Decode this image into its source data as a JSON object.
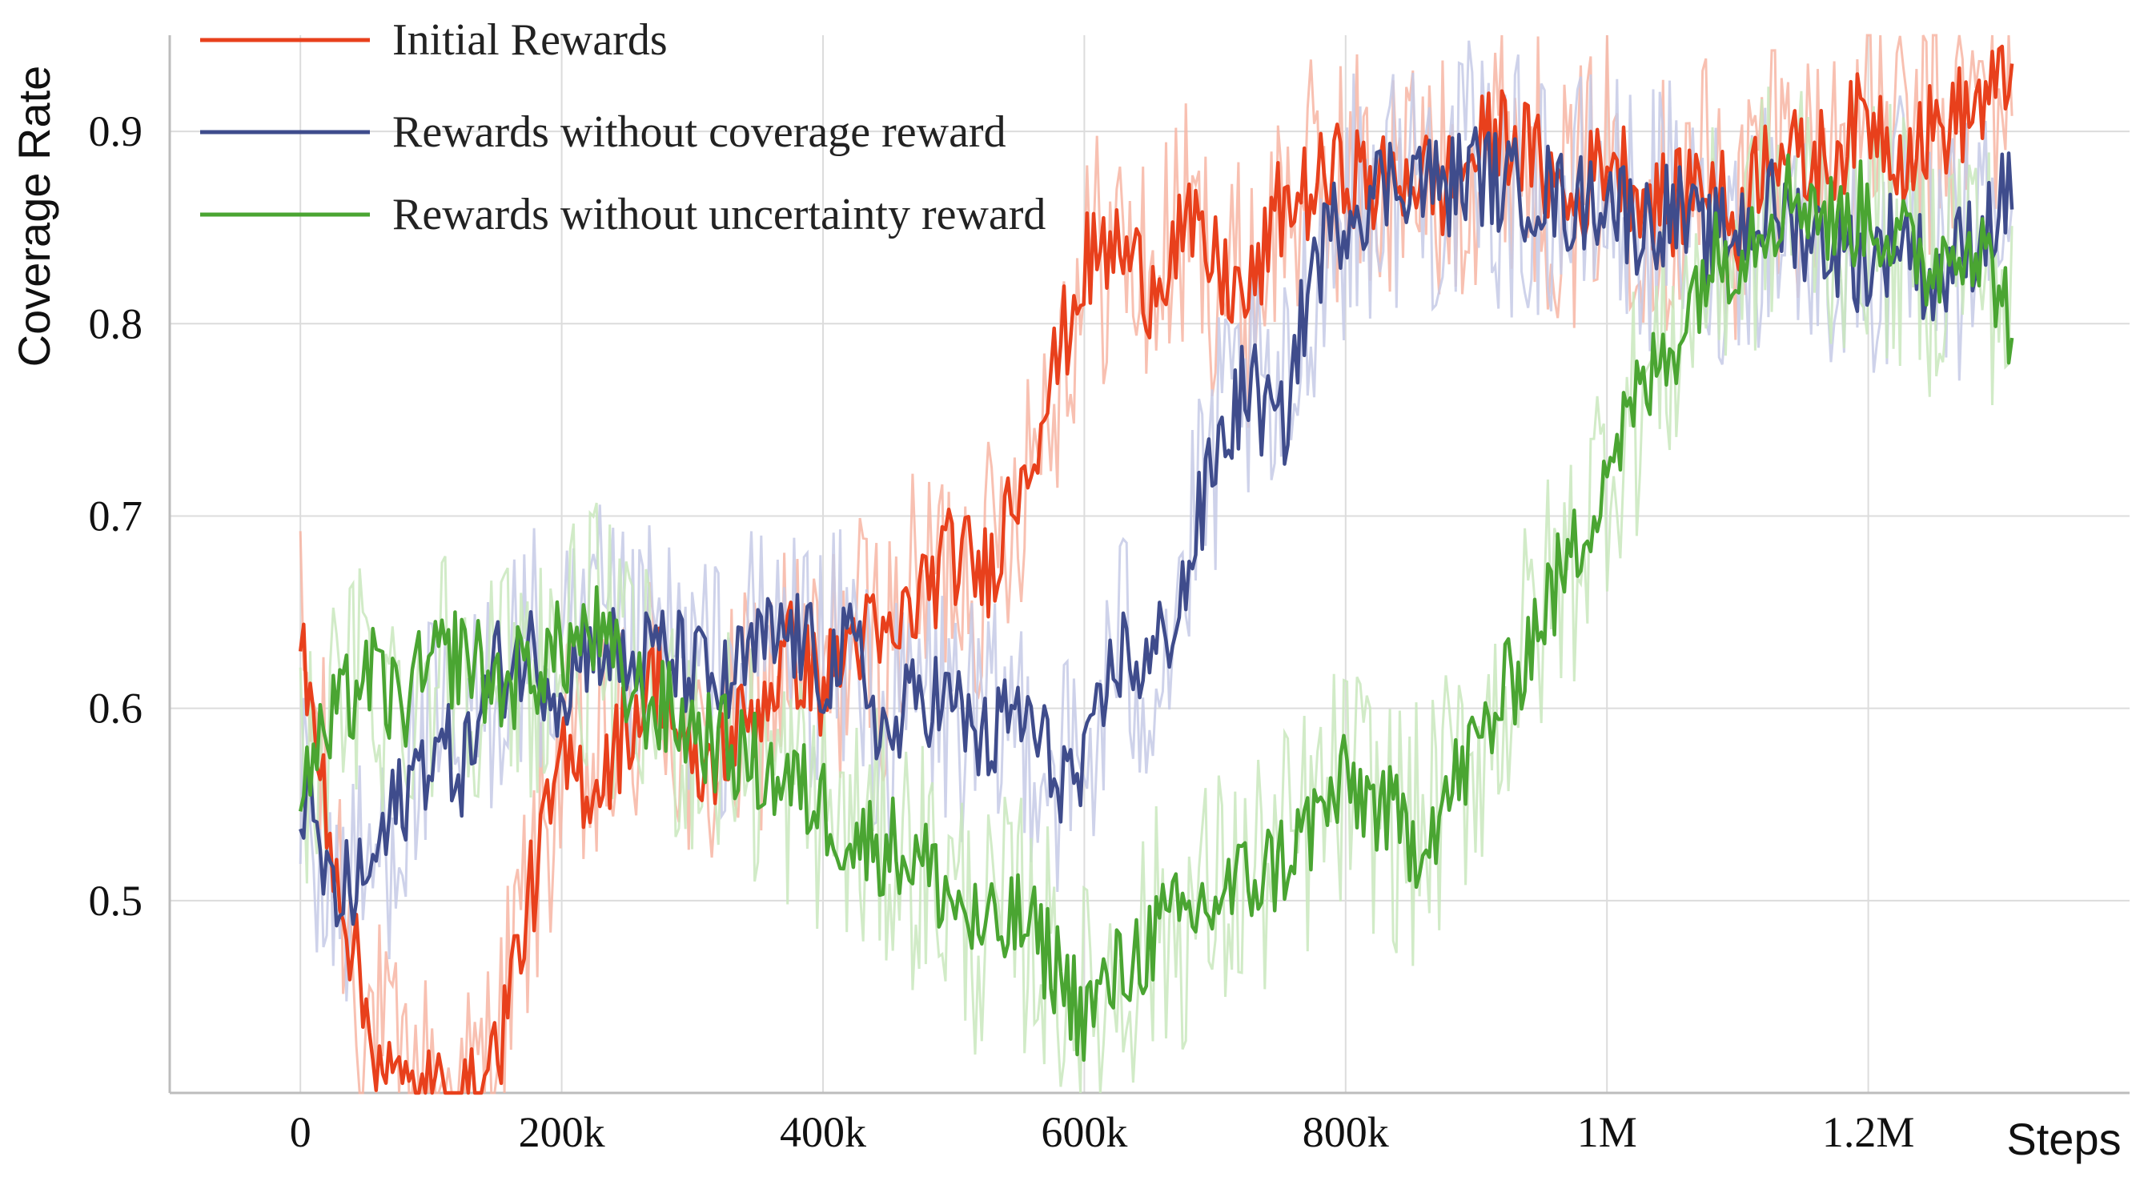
{
  "chart_data": {
    "type": "line",
    "title": "",
    "xlabel": "Steps",
    "ylabel": "Coverage Rate",
    "xlim": [
      -100000,
      1400000
    ],
    "ylim": [
      0.4,
      0.95
    ],
    "x_ticks": [
      0,
      200000,
      400000,
      600000,
      800000,
      1000000,
      1200000
    ],
    "x_tick_labels": [
      "0",
      "200k",
      "400k",
      "600k",
      "800k",
      "1M",
      "1.2M"
    ],
    "y_ticks": [
      0.5,
      0.6,
      0.7,
      0.8,
      0.9
    ],
    "y_tick_labels": [
      "0.5",
      "0.6",
      "0.7",
      "0.8",
      "0.9"
    ],
    "grid": true,
    "legend_position": "top-left",
    "series": [
      {
        "name": "Initial Rewards",
        "color": "#e8401c",
        "faint_color": "#f7b5a3",
        "x": [
          0,
          25000,
          50000,
          75000,
          100000,
          125000,
          150000,
          175000,
          200000,
          225000,
          250000,
          275000,
          300000,
          325000,
          350000,
          375000,
          400000,
          425000,
          450000,
          475000,
          500000,
          525000,
          550000,
          575000,
          600000,
          625000,
          650000,
          675000,
          700000,
          725000,
          750000,
          775000,
          800000,
          825000,
          850000,
          875000,
          900000,
          925000,
          950000,
          975000,
          1000000,
          1025000,
          1050000,
          1075000,
          1100000,
          1125000,
          1150000,
          1175000,
          1200000,
          1225000,
          1250000,
          1275000,
          1300000,
          1310000
        ],
        "values": [
          0.63,
          0.53,
          0.44,
          0.4,
          0.4,
          0.39,
          0.42,
          0.5,
          0.57,
          0.56,
          0.59,
          0.62,
          0.56,
          0.58,
          0.6,
          0.63,
          0.61,
          0.64,
          0.63,
          0.66,
          0.68,
          0.67,
          0.72,
          0.77,
          0.83,
          0.84,
          0.82,
          0.85,
          0.83,
          0.81,
          0.86,
          0.87,
          0.88,
          0.87,
          0.88,
          0.87,
          0.89,
          0.9,
          0.88,
          0.86,
          0.89,
          0.87,
          0.86,
          0.88,
          0.85,
          0.9,
          0.88,
          0.89,
          0.91,
          0.89,
          0.9,
          0.91,
          0.92,
          0.93
        ]
      },
      {
        "name": "Rewards without coverage reward",
        "color": "#3f4c8c",
        "faint_color": "#c5cae6",
        "x": [
          0,
          25000,
          50000,
          75000,
          100000,
          125000,
          150000,
          175000,
          200000,
          225000,
          250000,
          275000,
          300000,
          325000,
          350000,
          375000,
          400000,
          425000,
          450000,
          475000,
          500000,
          525000,
          550000,
          575000,
          600000,
          625000,
          650000,
          675000,
          700000,
          725000,
          750000,
          775000,
          800000,
          825000,
          850000,
          875000,
          900000,
          925000,
          950000,
          975000,
          1000000,
          1025000,
          1050000,
          1075000,
          1100000,
          1125000,
          1150000,
          1175000,
          1200000,
          1225000,
          1250000,
          1275000,
          1300000,
          1310000
        ],
        "values": [
          0.56,
          0.5,
          0.51,
          0.55,
          0.58,
          0.57,
          0.62,
          0.63,
          0.61,
          0.64,
          0.62,
          0.63,
          0.62,
          0.61,
          0.63,
          0.64,
          0.62,
          0.63,
          0.58,
          0.61,
          0.6,
          0.58,
          0.6,
          0.57,
          0.56,
          0.63,
          0.62,
          0.66,
          0.73,
          0.77,
          0.74,
          0.83,
          0.86,
          0.87,
          0.88,
          0.87,
          0.88,
          0.87,
          0.87,
          0.86,
          0.87,
          0.85,
          0.86,
          0.84,
          0.85,
          0.86,
          0.85,
          0.84,
          0.83,
          0.85,
          0.82,
          0.84,
          0.86,
          0.87
        ]
      },
      {
        "name": "Rewards without uncertainty reward",
        "color": "#4aa532",
        "faint_color": "#c9e8bd",
        "x": [
          0,
          25000,
          50000,
          75000,
          100000,
          125000,
          150000,
          175000,
          200000,
          225000,
          250000,
          275000,
          300000,
          325000,
          350000,
          375000,
          400000,
          425000,
          450000,
          475000,
          500000,
          525000,
          550000,
          575000,
          600000,
          625000,
          650000,
          675000,
          700000,
          725000,
          750000,
          775000,
          800000,
          825000,
          850000,
          875000,
          900000,
          925000,
          950000,
          975000,
          1000000,
          1025000,
          1050000,
          1075000,
          1100000,
          1125000,
          1150000,
          1175000,
          1200000,
          1225000,
          1250000,
          1275000,
          1300000,
          1310000
        ],
        "values": [
          0.56,
          0.59,
          0.62,
          0.6,
          0.62,
          0.63,
          0.61,
          0.62,
          0.63,
          0.64,
          0.61,
          0.6,
          0.59,
          0.58,
          0.57,
          0.56,
          0.55,
          0.53,
          0.53,
          0.52,
          0.5,
          0.48,
          0.49,
          0.47,
          0.44,
          0.46,
          0.48,
          0.49,
          0.5,
          0.51,
          0.52,
          0.54,
          0.56,
          0.55,
          0.53,
          0.55,
          0.58,
          0.61,
          0.65,
          0.68,
          0.73,
          0.76,
          0.79,
          0.83,
          0.84,
          0.86,
          0.87,
          0.85,
          0.86,
          0.84,
          0.83,
          0.85,
          0.82,
          0.8
        ]
      }
    ]
  }
}
